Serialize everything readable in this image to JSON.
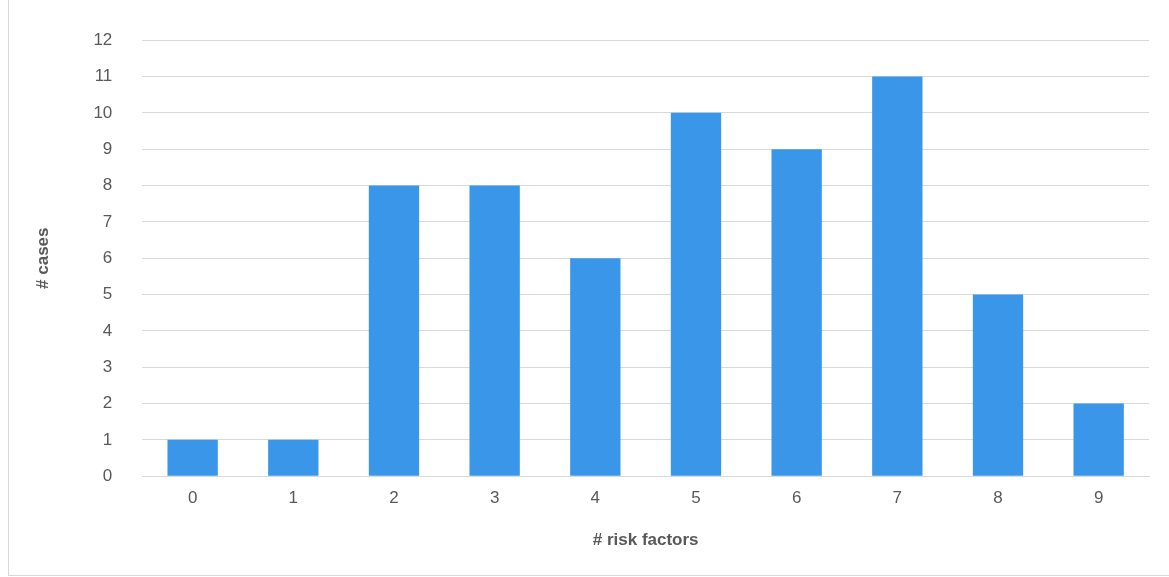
{
  "chart_data": {
    "type": "bar",
    "xlabel": "# risk factors",
    "ylabel": "# cases",
    "categories": [
      "0",
      "1",
      "2",
      "3",
      "4",
      "5",
      "6",
      "7",
      "8",
      "9"
    ],
    "values": [
      1,
      1,
      8,
      8,
      6,
      10,
      9,
      11,
      5,
      2
    ],
    "color": "#3a96e8",
    "ylim": [
      0,
      12
    ],
    "yticks": [
      0,
      1,
      2,
      3,
      4,
      5,
      6,
      7,
      8,
      9,
      10,
      11,
      12
    ],
    "grid": "y",
    "legend": false
  }
}
